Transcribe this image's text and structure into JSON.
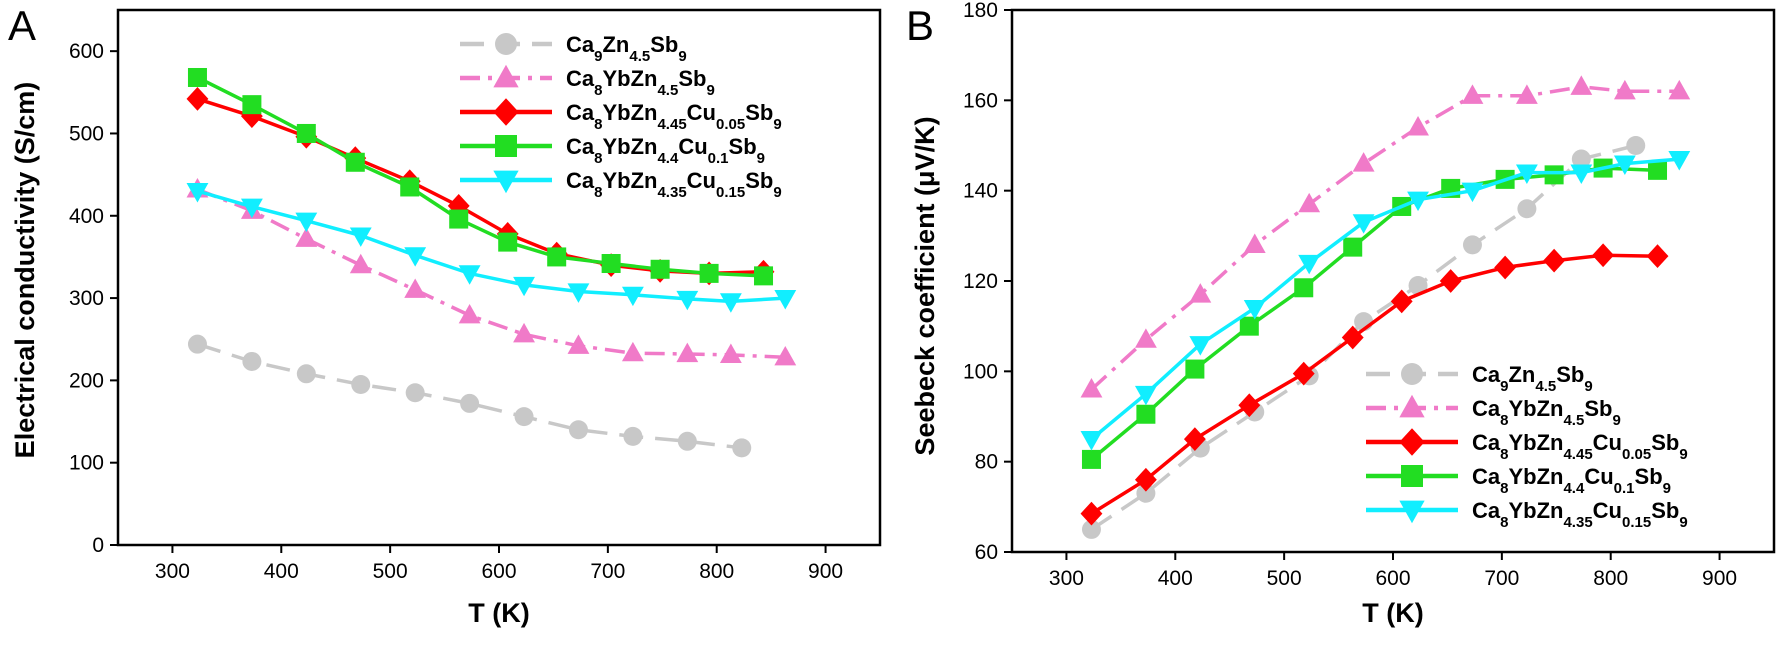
{
  "chart_data": [
    {
      "type": "line",
      "panel": "A",
      "title": "",
      "xlabel": "T (K)",
      "ylabel": "Electrical conductivity (S/cm)",
      "xlim": [
        250,
        950
      ],
      "ylim": [
        0,
        650
      ],
      "xticks": [
        300,
        400,
        500,
        600,
        700,
        800,
        900
      ],
      "yticks": [
        0,
        100,
        200,
        300,
        400,
        500,
        600
      ],
      "legend_position": "top-right",
      "series": [
        {
          "name": "Ca9Zn4.5Sb9",
          "label_parts": [
            [
              "Ca",
              ""
            ],
            [
              "9",
              "sub"
            ],
            [
              "Zn",
              ""
            ],
            [
              "4.5",
              "sub"
            ],
            [
              "Sb",
              ""
            ],
            [
              "9",
              "sub"
            ]
          ],
          "color": "#c8c8c8",
          "marker": "circle",
          "dash": "24,12",
          "x": [
            323,
            373,
            423,
            473,
            523,
            573,
            623,
            673,
            723,
            773,
            823
          ],
          "y": [
            244,
            223,
            208,
            195,
            185,
            172,
            156,
            140,
            132,
            126,
            118
          ]
        },
        {
          "name": "Ca8YbZn4.5Sb9",
          "label_parts": [
            [
              "Ca",
              ""
            ],
            [
              "8",
              "sub"
            ],
            [
              "YbZn",
              ""
            ],
            [
              "4.5",
              "sub"
            ],
            [
              "Sb",
              ""
            ],
            [
              "9",
              "sub"
            ]
          ],
          "color": "#f07ac8",
          "marker": "triangle-up",
          "dash": "20,8,4,8",
          "x": [
            323,
            373,
            423,
            473,
            523,
            573,
            623,
            673,
            723,
            773,
            813,
            863
          ],
          "y": [
            432,
            406,
            372,
            340,
            310,
            279,
            256,
            242,
            233,
            232,
            231,
            228
          ]
        },
        {
          "name": "Ca8YbZn4.45Cu0.05Sb9",
          "label_parts": [
            [
              "Ca",
              ""
            ],
            [
              "8",
              "sub"
            ],
            [
              "YbZn",
              ""
            ],
            [
              "4.45",
              "sub"
            ],
            [
              "Cu",
              ""
            ],
            [
              "0.05",
              "sub"
            ],
            [
              "Sb",
              ""
            ],
            [
              "9",
              "sub"
            ]
          ],
          "color": "#ff0000",
          "marker": "diamond",
          "dash": "",
          "x": [
            323,
            373,
            423,
            468,
            518,
            563,
            608,
            653,
            703,
            748,
            793,
            843
          ],
          "y": [
            542,
            521,
            496,
            470,
            442,
            412,
            378,
            354,
            340,
            333,
            330,
            332
          ]
        },
        {
          "name": "Ca8YbZn4.4Cu0.1Sb9",
          "label_parts": [
            [
              "Ca",
              ""
            ],
            [
              "8",
              "sub"
            ],
            [
              "YbZn",
              ""
            ],
            [
              "4.4",
              "sub"
            ],
            [
              "Cu",
              ""
            ],
            [
              "0.1",
              "sub"
            ],
            [
              "Sb",
              ""
            ],
            [
              "9",
              "sub"
            ]
          ],
          "color": "#22dd22",
          "marker": "square",
          "dash": "",
          "x": [
            323,
            373,
            423,
            468,
            518,
            563,
            608,
            653,
            703,
            748,
            793,
            843
          ],
          "y": [
            568,
            535,
            500,
            465,
            435,
            396,
            368,
            350,
            342,
            335,
            330,
            327
          ]
        },
        {
          "name": "Ca8YbZn4.35Cu0.15Sb9",
          "label_parts": [
            [
              "Ca",
              ""
            ],
            [
              "8",
              "sub"
            ],
            [
              "YbZn",
              ""
            ],
            [
              "4.35",
              "sub"
            ],
            [
              "Cu",
              ""
            ],
            [
              "0.15",
              "sub"
            ],
            [
              "Sb",
              ""
            ],
            [
              "9",
              "sub"
            ]
          ],
          "color": "#11eeff",
          "marker": "triangle-down",
          "dash": "",
          "x": [
            323,
            373,
            423,
            473,
            523,
            573,
            623,
            673,
            723,
            773,
            813,
            863
          ],
          "y": [
            430,
            411,
            394,
            376,
            352,
            330,
            316,
            308,
            304,
            299,
            296,
            300
          ]
        }
      ]
    },
    {
      "type": "line",
      "panel": "B",
      "title": "",
      "xlabel": "T (K)",
      "ylabel": "Seebeck coefficient (μV/K)",
      "xlim": [
        250,
        950
      ],
      "ylim": [
        60,
        180
      ],
      "xticks": [
        300,
        400,
        500,
        600,
        700,
        800,
        900
      ],
      "yticks": [
        60,
        80,
        100,
        120,
        140,
        160,
        180
      ],
      "legend_position": "bottom-right",
      "series": [
        {
          "name": "Ca9Zn4.5Sb9",
          "label_parts": [
            [
              "Ca",
              ""
            ],
            [
              "9",
              "sub"
            ],
            [
              "Zn",
              ""
            ],
            [
              "4.5",
              "sub"
            ],
            [
              "Sb",
              ""
            ],
            [
              "9",
              "sub"
            ]
          ],
          "color": "#c8c8c8",
          "marker": "circle",
          "dash": "24,12",
          "x": [
            323,
            373,
            423,
            473,
            523,
            573,
            623,
            673,
            723,
            773,
            823
          ],
          "y": [
            65,
            73,
            83,
            91,
            99,
            111,
            119,
            128,
            136,
            147,
            150
          ]
        },
        {
          "name": "Ca8YbZn4.5Sb9",
          "label_parts": [
            [
              "Ca",
              ""
            ],
            [
              "8",
              "sub"
            ],
            [
              "YbZn",
              ""
            ],
            [
              "4.5",
              "sub"
            ],
            [
              "Sb",
              ""
            ],
            [
              "9",
              "sub"
            ]
          ],
          "color": "#f07ac8",
          "marker": "triangle-up",
          "dash": "20,8,4,8",
          "x": [
            323,
            373,
            423,
            473,
            523,
            573,
            623,
            673,
            723,
            773,
            813,
            863
          ],
          "y": [
            96,
            107,
            117,
            128,
            137,
            146,
            154,
            161,
            161,
            163,
            162,
            162
          ]
        },
        {
          "name": "Ca8YbZn4.45Cu0.05Sb9",
          "label_parts": [
            [
              "Ca",
              ""
            ],
            [
              "8",
              "sub"
            ],
            [
              "YbZn",
              ""
            ],
            [
              "4.45",
              "sub"
            ],
            [
              "Cu",
              ""
            ],
            [
              "0.05",
              "sub"
            ],
            [
              "Sb",
              ""
            ],
            [
              "9",
              "sub"
            ]
          ],
          "color": "#ff0000",
          "marker": "diamond",
          "dash": "",
          "x": [
            323,
            373,
            418,
            468,
            518,
            563,
            608,
            653,
            703,
            748,
            793,
            843
          ],
          "y": [
            68.5,
            76,
            85,
            92.5,
            99.5,
            107.5,
            115.5,
            120,
            123,
            124.5,
            125.7,
            125.5
          ]
        },
        {
          "name": "Ca8YbZn4.4Cu0.1Sb9",
          "label_parts": [
            [
              "Ca",
              ""
            ],
            [
              "8",
              "sub"
            ],
            [
              "YbZn",
              ""
            ],
            [
              "4.4",
              "sub"
            ],
            [
              "Cu",
              ""
            ],
            [
              "0.1",
              "sub"
            ],
            [
              "Sb",
              ""
            ],
            [
              "9",
              "sub"
            ]
          ],
          "color": "#22dd22",
          "marker": "square",
          "dash": "",
          "x": [
            323,
            373,
            418,
            468,
            518,
            563,
            608,
            653,
            703,
            748,
            793,
            843
          ],
          "y": [
            80.5,
            90.5,
            100.5,
            110,
            118.5,
            127.5,
            136.5,
            140.5,
            142.5,
            143.5,
            145,
            144.5
          ]
        },
        {
          "name": "Ca8YbZn4.35Cu0.15Sb9",
          "label_parts": [
            [
              "Ca",
              ""
            ],
            [
              "8",
              "sub"
            ],
            [
              "YbZn",
              ""
            ],
            [
              "4.35",
              "sub"
            ],
            [
              "Cu",
              ""
            ],
            [
              "0.15",
              "sub"
            ],
            [
              "Sb",
              ""
            ],
            [
              "9",
              "sub"
            ]
          ],
          "color": "#11eeff",
          "marker": "triangle-down",
          "dash": "",
          "x": [
            323,
            373,
            423,
            473,
            523,
            573,
            623,
            673,
            723,
            773,
            813,
            863
          ],
          "y": [
            85,
            95,
            106,
            114,
            124,
            133,
            138,
            140,
            144,
            144,
            146,
            147
          ]
        }
      ]
    }
  ]
}
